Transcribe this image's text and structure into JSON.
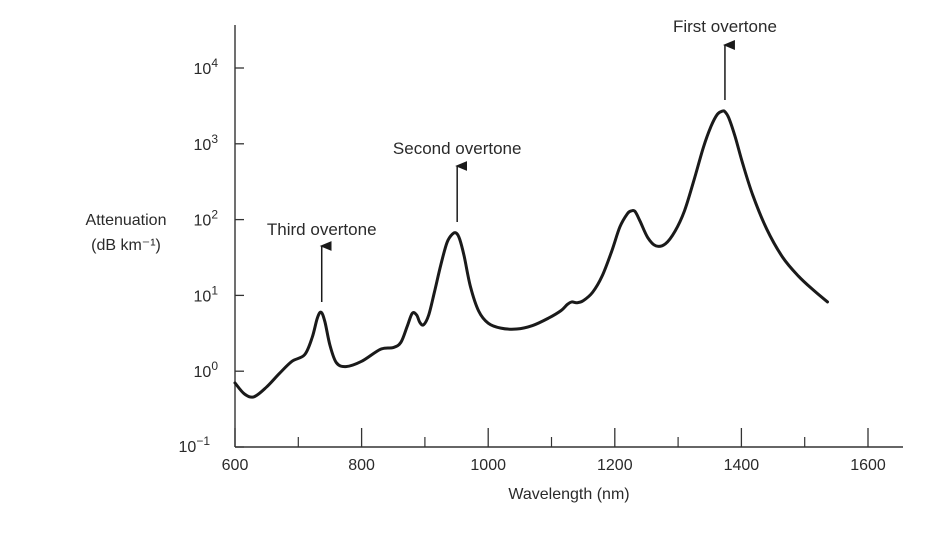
{
  "chart_data": {
    "type": "line",
    "title": "",
    "xlabel": "Wavelength (nm)",
    "ylabel": [
      "Attenuation",
      "(dB km⁻¹)"
    ],
    "x_scale": "linear",
    "y_scale": "log",
    "xlim": [
      600,
      1650
    ],
    "ylim": [
      0.1,
      30000
    ],
    "x_ticks": [
      600,
      800,
      1000,
      1200,
      1400,
      1600
    ],
    "x_minor_ticks": [
      700,
      900,
      1100,
      1300,
      1500
    ],
    "y_ticks": [
      {
        "value": 0.1,
        "base": "10",
        "exp": "−1"
      },
      {
        "value": 1,
        "base": "10",
        "exp": "0"
      },
      {
        "value": 10,
        "base": "10",
        "exp": "1"
      },
      {
        "value": 100,
        "base": "10",
        "exp": "2"
      },
      {
        "value": 1000,
        "base": "10",
        "exp": "3"
      },
      {
        "value": 10000,
        "base": "10",
        "exp": "4"
      }
    ],
    "grid": false,
    "series": [
      {
        "x": [
          600,
          615,
          630,
          650,
          670,
          690,
          710,
          722,
          730,
          736,
          742,
          750,
          760,
          775,
          800,
          830,
          850,
          862,
          872,
          880,
          887,
          892,
          898,
          906,
          915,
          925,
          935,
          944,
          950,
          955,
          962,
          972,
          985,
          1000,
          1020,
          1045,
          1070,
          1095,
          1115,
          1125,
          1132,
          1140,
          1150,
          1165,
          1180,
          1195,
          1208,
          1220,
          1226,
          1232,
          1240,
          1252,
          1265,
          1280,
          1295,
          1310,
          1325,
          1340,
          1352,
          1362,
          1370,
          1374,
          1380,
          1390,
          1402,
          1418,
          1440,
          1465,
          1490,
          1515,
          1536
        ],
        "values": [
          0.7,
          0.5,
          0.46,
          0.62,
          0.93,
          1.35,
          1.65,
          2.8,
          5.0,
          6.0,
          4.5,
          2.2,
          1.3,
          1.15,
          1.35,
          1.95,
          2.05,
          2.4,
          3.9,
          5.8,
          5.5,
          4.4,
          4.1,
          5.5,
          11.0,
          25.0,
          50.0,
          65.0,
          66.0,
          55.0,
          33.0,
          13.0,
          6.2,
          4.3,
          3.7,
          3.6,
          4.0,
          5.0,
          6.3,
          7.6,
          8.2,
          8.0,
          8.5,
          11.0,
          18.0,
          38.0,
          80.0,
          120.0,
          130.0,
          128.0,
          95.0,
          58.0,
          45.0,
          48.0,
          70.0,
          130.0,
          330.0,
          900.0,
          1700.0,
          2450.0,
          2700.0,
          2650.0,
          2200.0,
          1250.0,
          550.0,
          210.0,
          75.0,
          32.0,
          18.0,
          11.5,
          8.2
        ]
      }
    ],
    "annotations": [
      {
        "text": "Third overtone",
        "x": 737
      },
      {
        "text": "Second overtone",
        "x": 951
      },
      {
        "text": "First overtone",
        "x": 1374
      }
    ]
  }
}
